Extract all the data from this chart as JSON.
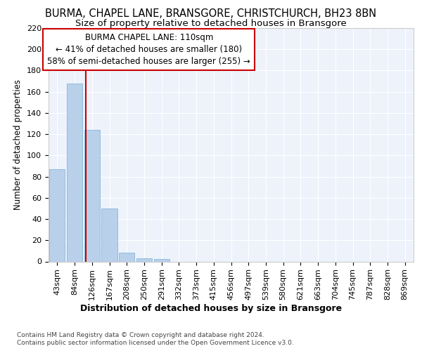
{
  "title": "BURMA, CHAPEL LANE, BRANSGORE, CHRISTCHURCH, BH23 8BN",
  "subtitle": "Size of property relative to detached houses in Bransgore",
  "xlabel": "Distribution of detached houses by size in Bransgore",
  "ylabel": "Number of detached properties",
  "footer1": "Contains HM Land Registry data © Crown copyright and database right 2024.",
  "footer2": "Contains public sector information licensed under the Open Government Licence v3.0.",
  "bar_labels": [
    "43sqm",
    "84sqm",
    "126sqm",
    "167sqm",
    "208sqm",
    "250sqm",
    "291sqm",
    "332sqm",
    "373sqm",
    "415sqm",
    "456sqm",
    "497sqm",
    "539sqm",
    "580sqm",
    "621sqm",
    "663sqm",
    "704sqm",
    "745sqm",
    "787sqm",
    "828sqm",
    "869sqm"
  ],
  "bar_values": [
    87,
    168,
    124,
    50,
    8,
    3,
    2,
    0,
    0,
    0,
    0,
    0,
    0,
    0,
    0,
    0,
    0,
    0,
    0,
    0,
    0
  ],
  "bar_color": "#b8d0ea",
  "bar_edgecolor": "#7aafd4",
  "ylim": [
    0,
    220
  ],
  "yticks": [
    0,
    20,
    40,
    60,
    80,
    100,
    120,
    140,
    160,
    180,
    200,
    220
  ],
  "vline_x": 1.63,
  "vline_color": "#cc0000",
  "annotation_line1": "BURMA CHAPEL LANE: 110sqm",
  "annotation_line2": "← 41% of detached houses are smaller (180)",
  "annotation_line3": "58% of semi-detached houses are larger (255) →",
  "annotation_box_color": "#cc0000",
  "background_color": "#edf2fb",
  "grid_color": "#ffffff",
  "title_fontsize": 10.5,
  "subtitle_fontsize": 9.5,
  "xlabel_fontsize": 9,
  "ylabel_fontsize": 8.5,
  "tick_fontsize": 8,
  "annotation_fontsize": 8.5,
  "footer_fontsize": 6.5
}
